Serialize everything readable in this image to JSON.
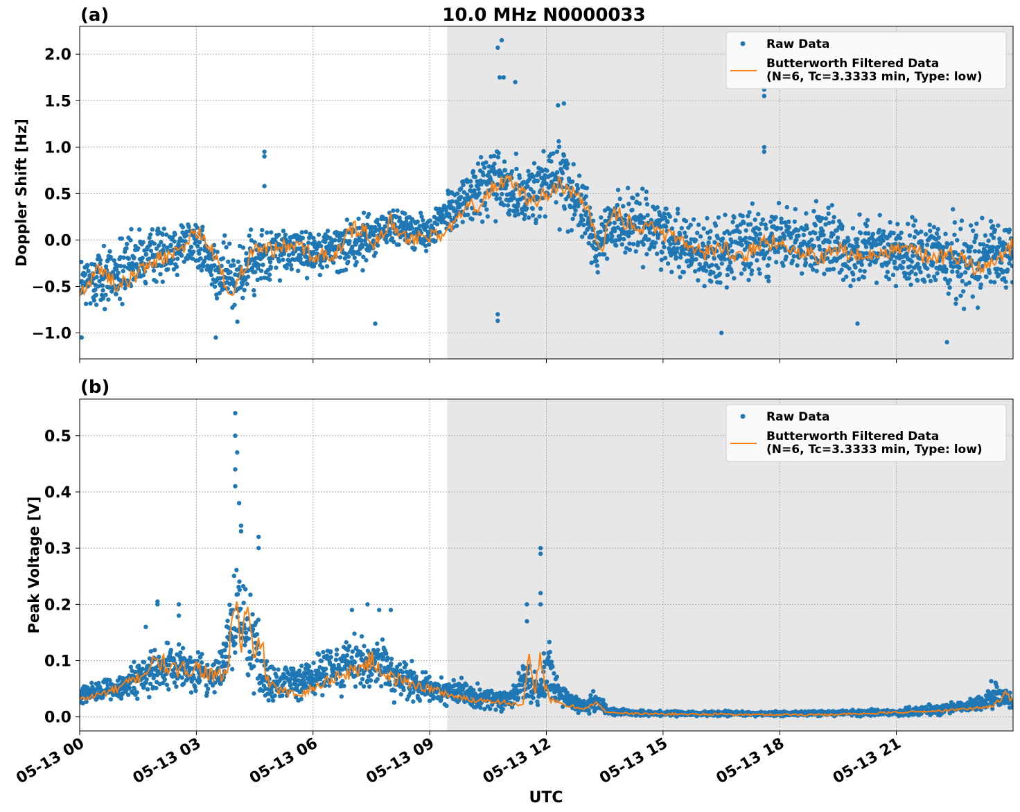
{
  "figure": {
    "title": "10.0 MHz N0000033",
    "xlabel": "UTC",
    "x_tick_labels": [
      "05-13 00",
      "05-13 03",
      "05-13 06",
      "05-13 09",
      "05-13 12",
      "05-13 15",
      "05-13 18",
      "05-13 21"
    ]
  },
  "colors": {
    "raw": "#1f77b4",
    "filtered": "#ff7f0e",
    "shade": "#e7e7e7"
  },
  "chart_data": [
    {
      "type": "scatter",
      "panel_label": "(a)",
      "ylabel": "Doppler Shift [Hz]",
      "x_unit": "hours UTC since 05-13 00:00",
      "xlim": [
        0,
        24
      ],
      "ylim": [
        -1.28,
        2.3
      ],
      "y_ticks": [
        -1.0,
        -0.5,
        0.0,
        0.5,
        1.0,
        1.5,
        2.0
      ],
      "y_tick_labels": [
        "−1.0",
        "−0.5",
        "0.0",
        "0.5",
        "1.0",
        "1.5",
        "2.0"
      ],
      "grid": true,
      "legend_position": "top-right",
      "shaded_interval_x": [
        9.45,
        24
      ],
      "series": [
        {
          "name": "Raw Data",
          "kind": "points",
          "band": {
            "x": [
              0,
              1,
              2,
              3,
              3.5,
              4,
              5,
              6,
              7,
              8,
              9,
              9.5,
              10,
              10.7,
              11,
              11.5,
              12,
              12.5,
              13,
              13.3,
              13.5,
              14,
              15,
              16,
              17,
              18,
              19,
              20,
              21,
              22,
              22.5,
              23,
              24
            ],
            "y_min": [
              -0.9,
              -0.85,
              -0.55,
              -0.4,
              -0.8,
              -0.95,
              -0.5,
              -0.45,
              -0.45,
              -0.15,
              -0.2,
              0.0,
              0.1,
              0.0,
              0.0,
              0.05,
              0.05,
              0.0,
              -0.1,
              -0.5,
              -0.4,
              -0.3,
              -0.4,
              -0.65,
              -0.6,
              -0.5,
              -0.55,
              -0.65,
              -0.6,
              -0.7,
              -0.8,
              -0.85,
              -0.6
            ],
            "y_max": [
              -0.05,
              0.15,
              0.25,
              0.4,
              0.05,
              0.2,
              0.25,
              0.2,
              0.35,
              0.45,
              0.3,
              0.65,
              0.85,
              1.25,
              1.1,
              0.9,
              1.2,
              1.3,
              0.7,
              0.2,
              0.65,
              0.65,
              0.55,
              0.35,
              0.45,
              0.45,
              0.5,
              0.4,
              0.35,
              0.35,
              0.45,
              0.35,
              0.35
            ]
          },
          "outliers": [
            [
              4.75,
              0.95
            ],
            [
              4.75,
              0.9
            ],
            [
              4.75,
              0.58
            ],
            [
              10.75,
              -0.8
            ],
            [
              10.75,
              -0.87
            ],
            [
              10.75,
              2.07
            ],
            [
              10.85,
              2.15
            ],
            [
              10.9,
              1.75
            ],
            [
              10.8,
              1.75
            ],
            [
              11.2,
              1.7
            ],
            [
              17.6,
              1.55
            ],
            [
              17.6,
              1.62
            ],
            [
              17.6,
              1.0
            ],
            [
              17.6,
              0.95
            ],
            [
              12.3,
              1.45
            ],
            [
              12.45,
              1.47
            ],
            [
              3.5,
              -1.05
            ],
            [
              0.05,
              -1.05
            ],
            [
              22.3,
              -1.1
            ],
            [
              7.6,
              -0.9
            ],
            [
              16.5,
              -1.0
            ],
            [
              20.0,
              -0.9
            ]
          ]
        },
        {
          "name": "Butterworth Filtered Data\n(N=6, Tc=3.3333 min, Type: low)",
          "kind": "line",
          "x": [
            0,
            0.5,
            1,
            1.5,
            2,
            2.5,
            3,
            3.3,
            3.6,
            3.9,
            4.2,
            4.5,
            5,
            5.5,
            6,
            6.5,
            7,
            7.3,
            7.5,
            8,
            8.5,
            9,
            9.3,
            9.6,
            10,
            10.3,
            10.6,
            11,
            11.3,
            11.6,
            12,
            12.3,
            12.6,
            13,
            13.2,
            13.4,
            13.7,
            14,
            14.5,
            15,
            15.5,
            16,
            16.5,
            17,
            17.5,
            18,
            18.5,
            19,
            19.5,
            20,
            20.5,
            21,
            21.5,
            22,
            22.5,
            23,
            23.5,
            24
          ],
          "y": [
            -0.6,
            -0.3,
            -0.5,
            -0.35,
            -0.2,
            -0.15,
            0.1,
            -0.05,
            -0.3,
            -0.65,
            -0.3,
            -0.05,
            -0.1,
            -0.05,
            -0.15,
            -0.2,
            0.1,
            0.15,
            -0.1,
            0.2,
            0.0,
            0.05,
            0.0,
            0.2,
            0.45,
            0.35,
            0.55,
            0.65,
            0.55,
            0.4,
            0.5,
            0.6,
            0.55,
            0.4,
            0.1,
            -0.15,
            0.35,
            0.2,
            0.15,
            0.05,
            0.0,
            -0.15,
            -0.05,
            -0.2,
            -0.05,
            0.0,
            -0.1,
            -0.2,
            -0.1,
            -0.15,
            -0.15,
            -0.1,
            -0.15,
            -0.2,
            -0.15,
            -0.3,
            -0.25,
            -0.05
          ]
        }
      ]
    },
    {
      "type": "scatter",
      "panel_label": "(b)",
      "ylabel": "Peak Voltage [V]",
      "x_unit": "hours UTC since 05-13 00:00",
      "xlim": [
        0,
        24
      ],
      "ylim": [
        -0.025,
        0.565
      ],
      "y_ticks": [
        0.0,
        0.1,
        0.2,
        0.3,
        0.4,
        0.5
      ],
      "y_tick_labels": [
        "0.0",
        "0.1",
        "0.2",
        "0.3",
        "0.4",
        "0.5"
      ],
      "grid": true,
      "legend_position": "top-right",
      "shaded_interval_x": [
        9.45,
        24
      ],
      "series": [
        {
          "name": "Raw Data",
          "kind": "points",
          "band": {
            "x": [
              0,
              1,
              2,
              2.5,
              3,
              3.5,
              3.8,
              4.0,
              4.2,
              4.5,
              4.7,
              5,
              6,
              6.5,
              7,
              7.5,
              8,
              8.5,
              9,
              10,
              11,
              11.5,
              11.8,
              12,
              12.5,
              13,
              13.3,
              13.6,
              14,
              15,
              16,
              17,
              18,
              19,
              20,
              21,
              22,
              23,
              23.6,
              24
            ],
            "y_min": [
              0.015,
              0.02,
              0.03,
              0.035,
              0.03,
              0.03,
              0.04,
              0.05,
              0.04,
              0.03,
              0.02,
              0.015,
              0.02,
              0.025,
              0.03,
              0.025,
              0.02,
              0.015,
              0.01,
              0.005,
              0.005,
              0.01,
              0.01,
              0.005,
              0.002,
              0.0,
              0.0,
              0.0,
              0.0,
              0.0,
              0.0,
              0.0,
              0.0,
              0.0,
              0.0,
              0.0,
              0.0,
              0.005,
              0.01,
              0.01
            ],
            "y_max": [
              0.06,
              0.08,
              0.14,
              0.14,
              0.13,
              0.11,
              0.2,
              0.3,
              0.28,
              0.25,
              0.12,
              0.1,
              0.12,
              0.15,
              0.16,
              0.16,
              0.14,
              0.11,
              0.09,
              0.07,
              0.05,
              0.12,
              0.08,
              0.16,
              0.06,
              0.04,
              0.06,
              0.02,
              0.015,
              0.012,
              0.012,
              0.012,
              0.012,
              0.012,
              0.015,
              0.015,
              0.025,
              0.035,
              0.075,
              0.04
            ]
          },
          "outliers": [
            [
              4.0,
              0.54
            ],
            [
              4.0,
              0.5
            ],
            [
              4.05,
              0.47
            ],
            [
              4.0,
              0.44
            ],
            [
              4.0,
              0.41
            ],
            [
              4.1,
              0.38
            ],
            [
              4.15,
              0.34
            ],
            [
              4.15,
              0.33
            ],
            [
              4.6,
              0.32
            ],
            [
              4.6,
              0.3
            ],
            [
              11.85,
              0.3
            ],
            [
              11.85,
              0.29
            ],
            [
              11.85,
              0.22
            ],
            [
              11.85,
              0.2
            ],
            [
              11.5,
              0.2
            ],
            [
              11.5,
              0.17
            ],
            [
              2.0,
              0.205
            ],
            [
              2.0,
              0.2
            ],
            [
              2.55,
              0.2
            ],
            [
              2.55,
              0.18
            ],
            [
              7.4,
              0.2
            ],
            [
              7.0,
              0.19
            ],
            [
              7.7,
              0.19
            ],
            [
              8.0,
              0.19
            ],
            [
              1.7,
              0.16
            ],
            [
              3.7,
              0.13
            ]
          ]
        },
        {
          "name": "Butterworth Filtered Data\n(N=6, Tc=3.3333 min, Type: low)",
          "kind": "line",
          "x": [
            0,
            0.5,
            1,
            1.5,
            2,
            2.5,
            3,
            3.5,
            3.8,
            4.0,
            4.15,
            4.3,
            4.5,
            4.65,
            4.8,
            5,
            5.5,
            6,
            6.5,
            7,
            7.5,
            8,
            8.5,
            9,
            9.5,
            10,
            10.5,
            11,
            11.4,
            11.55,
            11.7,
            11.85,
            11.95,
            12.1,
            12.5,
            13,
            13.3,
            13.5,
            14,
            15,
            16,
            17,
            18,
            19,
            20,
            21,
            22,
            23,
            23.5,
            23.8,
            24
          ],
          "y": [
            0.03,
            0.04,
            0.05,
            0.07,
            0.1,
            0.08,
            0.09,
            0.07,
            0.08,
            0.22,
            0.12,
            0.2,
            0.09,
            0.15,
            0.07,
            0.05,
            0.04,
            0.05,
            0.07,
            0.08,
            0.1,
            0.07,
            0.06,
            0.05,
            0.04,
            0.03,
            0.03,
            0.025,
            0.02,
            0.1,
            0.04,
            0.12,
            0.06,
            0.03,
            0.02,
            0.015,
            0.025,
            0.01,
            0.006,
            0.005,
            0.005,
            0.004,
            0.004,
            0.004,
            0.005,
            0.008,
            0.01,
            0.015,
            0.02,
            0.04,
            0.03
          ]
        }
      ]
    }
  ]
}
